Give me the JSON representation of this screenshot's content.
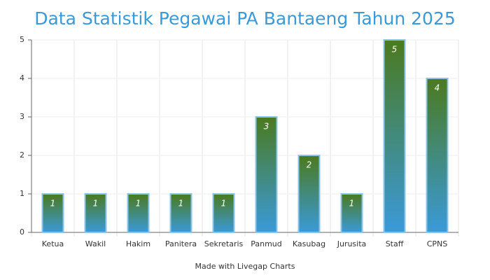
{
  "chart_data": {
    "type": "bar",
    "title": "Data Statistik Pegawai PA Bantaeng Tahun 2025",
    "categories": [
      "Ketua",
      "Wakil",
      "Hakim",
      "Panitera",
      "Sekretaris",
      "Panmud",
      "Kasubag",
      "Jurusita",
      "Staff",
      "CPNS"
    ],
    "values": [
      1,
      1,
      1,
      1,
      1,
      3,
      2,
      1,
      5,
      4
    ],
    "color": "#4b7a1e",
    "color_bottom": "#3a9ad9",
    "border_color": "#8cc4e8",
    "ylim": [
      0,
      5
    ],
    "yticks": [
      0,
      1,
      2,
      3,
      4,
      5
    ],
    "grid": true,
    "credit": "Made with Livegap Charts"
  }
}
